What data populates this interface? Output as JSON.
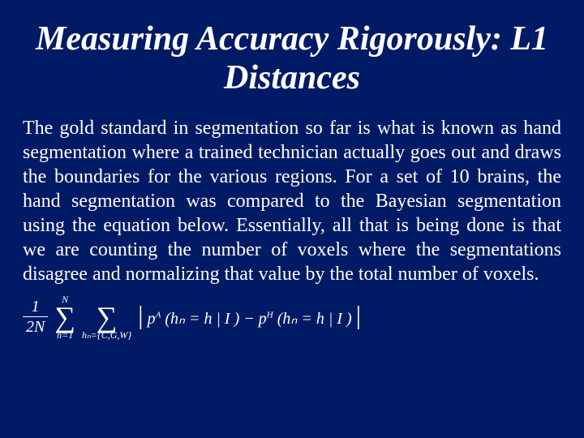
{
  "slide": {
    "background_color": "#001a66",
    "text_color": "#ffffff",
    "title": "Measuring Accuracy Rigorously: L1 Distances",
    "title_fontsize": 42,
    "title_style": "bold italic",
    "body": "The gold standard in segmentation so far is what is known as hand segmentation where a trained technician actually goes out and draws the boundaries for the various regions. For a set of 10 brains, the hand segmentation was compared to the Bayesian segmentation using the equation below. Essentially, all that is being done is that we are counting the number of voxels where the segmentations disagree and normalizing that value by the total number of voxels.",
    "body_fontsize": 24,
    "body_align": "justify",
    "equation": {
      "frac_num": "1",
      "frac_den": "2N",
      "sum1_upper": "N",
      "sum1_lower": "n=1",
      "sum2_lower": "hₙ={C,G,W}",
      "pA": "p",
      "pA_sup": "A",
      "pH": "p",
      "pH_sup": "H",
      "arg_left": "(hₙ = h | I )",
      "minus": "−",
      "arg_right": "(hₙ = h | I )"
    }
  }
}
